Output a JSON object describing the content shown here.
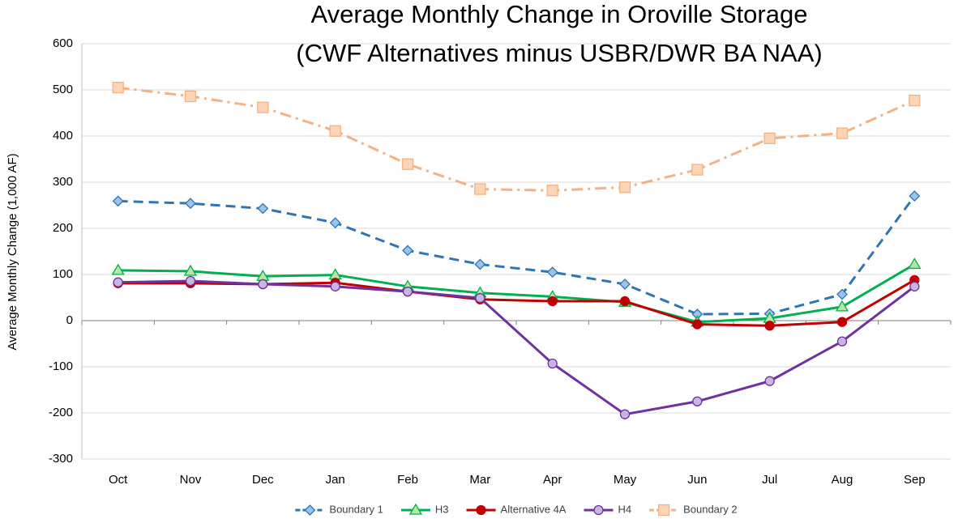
{
  "chart_data": {
    "type": "line",
    "title": [
      "Average Monthly Change in Oroville Storage",
      "(CWF Alternatives minus USBR/DWR BA NAA)"
    ],
    "y_label": "Average Monthly Change (1,000 AF)",
    "categories": [
      "Oct",
      "Nov",
      "Dec",
      "Jan",
      "Feb",
      "Mar",
      "Apr",
      "May",
      "Jun",
      "Jul",
      "Aug",
      "Sep"
    ],
    "ylim": [
      -300,
      600
    ],
    "yticks": [
      -300,
      -200,
      -100,
      0,
      100,
      200,
      300,
      400,
      500,
      600
    ],
    "grid": true,
    "legend": "bottom",
    "series": [
      {
        "name": "Boundary 1",
        "color": "#2e75b6",
        "marker_fill": "#9dc3e6",
        "marker": "diamond",
        "dash": "dashed",
        "values": [
          259,
          254,
          243,
          212,
          152,
          122,
          105,
          79,
          14,
          15,
          57,
          270
        ]
      },
      {
        "name": "H3",
        "color": "#00b050",
        "marker_fill": "#b5e6a2",
        "marker": "triangle",
        "dash": "solid",
        "values": [
          109,
          107,
          96,
          99,
          74,
          60,
          52,
          40,
          -3,
          5,
          30,
          122
        ]
      },
      {
        "name": "Alternative 4A",
        "color": "#c00000",
        "marker_fill": "#c00000",
        "marker": "circle",
        "dash": "solid",
        "values": [
          81,
          81,
          79,
          82,
          63,
          46,
          42,
          42,
          -8,
          -11,
          -3,
          88
        ]
      },
      {
        "name": "H4",
        "color": "#7030a0",
        "marker_fill": "#c9b6e0",
        "marker": "circle",
        "dash": "solid",
        "values": [
          83,
          86,
          79,
          74,
          63,
          49,
          -93,
          -203,
          -175,
          -131,
          -45,
          74
        ]
      },
      {
        "name": "Boundary 2",
        "color": "#f4b183",
        "marker_fill": "#fbd5b5",
        "marker": "square",
        "dash": "dashdot",
        "values": [
          505,
          486,
          462,
          411,
          339,
          285,
          282,
          289,
          327,
          395,
          406,
          477
        ]
      }
    ]
  }
}
